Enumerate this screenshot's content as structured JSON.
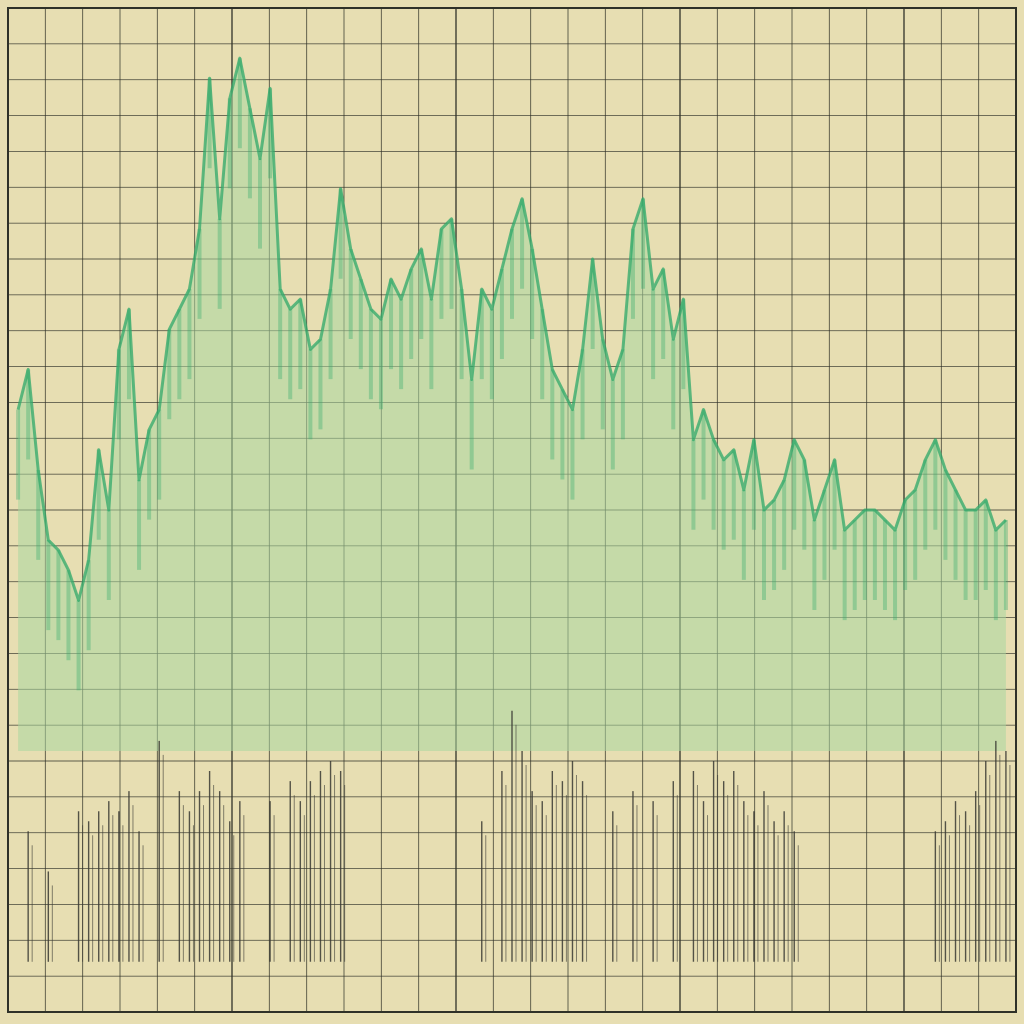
{
  "palette": {
    "paper": "#e7deb2",
    "grid": "#2f3128",
    "area_fill": "#a9d7a0",
    "area_stroke": "#2fa86a",
    "spike_stroke": "#3a3a34"
  },
  "chart_data": {
    "type": "area",
    "grid": true,
    "legend": "none",
    "xlim": [
      0,
      100
    ],
    "ylim": [
      0,
      100
    ],
    "series": [
      {
        "x": [
          1,
          2,
          3,
          4,
          5,
          6,
          7,
          8,
          9,
          10,
          11,
          12,
          13,
          14,
          15,
          16,
          17,
          18,
          19,
          20,
          21,
          22,
          23,
          24,
          25,
          26,
          27,
          28,
          29,
          30,
          31,
          32,
          33,
          34,
          35,
          36,
          37,
          38,
          39,
          40,
          41,
          42,
          43,
          44,
          45,
          46,
          47,
          48,
          49,
          50,
          51,
          52,
          53,
          54,
          55,
          56,
          57,
          58,
          59,
          60,
          61,
          62,
          63,
          64,
          65,
          66,
          67,
          68,
          69,
          70,
          71,
          72,
          73,
          74,
          75,
          76,
          77,
          78,
          79,
          80,
          81,
          82,
          83,
          84,
          85,
          86,
          87,
          88,
          89,
          90,
          91,
          92,
          93,
          94,
          95,
          96,
          97,
          98,
          99
        ],
        "y": [
          60,
          64,
          54,
          47,
          46,
          44,
          41,
          45,
          56,
          50,
          66,
          70,
          53,
          58,
          60,
          68,
          70,
          72,
          78,
          93,
          79,
          91,
          95,
          90,
          85,
          92,
          72,
          70,
          71,
          66,
          67,
          72,
          82,
          76,
          73,
          70,
          69,
          73,
          71,
          74,
          76,
          71,
          78,
          79,
          72,
          63,
          72,
          70,
          74,
          78,
          81,
          76,
          70,
          64,
          62,
          60,
          66,
          75,
          67,
          63,
          66,
          78,
          81,
          72,
          74,
          67,
          71,
          57,
          60,
          57,
          55,
          56,
          52,
          57,
          50,
          51,
          53,
          57,
          55,
          49,
          52,
          55,
          48,
          49,
          50,
          50,
          49,
          48,
          51,
          52,
          55,
          57,
          54,
          52,
          50,
          50,
          51,
          48,
          49
        ]
      }
    ],
    "bars": {
      "x": [
        2,
        4,
        7,
        8,
        9,
        10,
        11,
        12,
        13,
        15,
        17,
        18,
        19,
        20,
        21,
        22,
        23,
        26,
        28,
        29,
        30,
        31,
        32,
        33,
        47,
        49,
        50,
        51,
        52,
        53,
        54,
        55,
        56,
        57,
        60,
        62,
        64,
        66,
        68,
        69,
        70,
        71,
        72,
        73,
        74,
        75,
        76,
        77,
        78,
        92,
        93,
        94,
        95,
        96,
        97,
        98,
        99
      ],
      "y": [
        18,
        14,
        20,
        19,
        20,
        21,
        20,
        22,
        18,
        27,
        22,
        20,
        22,
        24,
        22,
        19,
        21,
        21,
        23,
        21,
        23,
        24,
        25,
        24,
        19,
        24,
        30,
        26,
        22,
        21,
        24,
        23,
        25,
        23,
        20,
        22,
        21,
        23,
        24,
        21,
        25,
        23,
        24,
        21,
        20,
        22,
        19,
        20,
        18,
        18,
        19,
        21,
        20,
        22,
        25,
        27,
        26
      ]
    }
  }
}
